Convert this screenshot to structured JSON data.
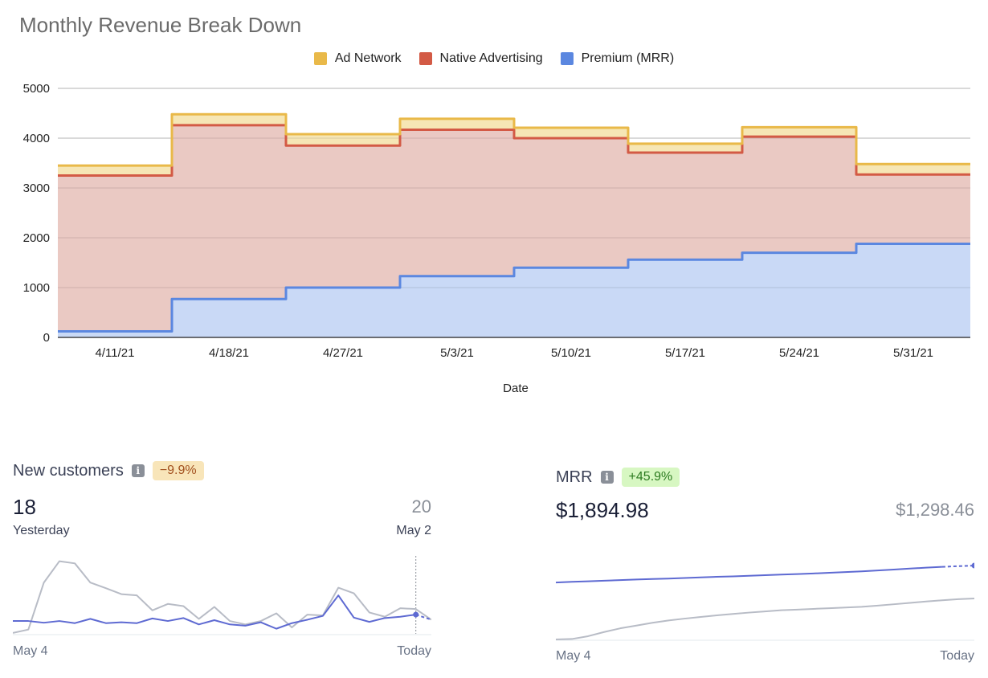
{
  "chart_data": [
    {
      "type": "area",
      "style": "stepped-stacked",
      "title": "Monthly Revenue Break Down",
      "xlabel": "Date",
      "ylabel": "",
      "ylim": [
        0,
        5000
      ],
      "yticks": [
        0,
        1000,
        2000,
        3000,
        4000,
        5000
      ],
      "grid": true,
      "legend_position": "top-center",
      "categories": [
        "4/11/21",
        "4/18/21",
        "4/27/21",
        "5/3/21",
        "5/10/21",
        "5/17/21",
        "5/24/21",
        "5/31/21"
      ],
      "series": [
        {
          "name": "Ad Network",
          "color": "#e9b949",
          "fill": "#f6e6b5",
          "values": [
            200,
            220,
            230,
            220,
            210,
            180,
            190,
            210
          ]
        },
        {
          "name": "Native Advertising",
          "color": "#d35a45",
          "fill": "#eac9c3",
          "values": [
            3130,
            3490,
            2850,
            2940,
            2600,
            2150,
            2330,
            1390
          ]
        },
        {
          "name": "Premium (MRR)",
          "color": "#5b87e0",
          "fill": "#c9d9f6",
          "values": [
            120,
            770,
            1000,
            1230,
            1400,
            1560,
            1700,
            1880
          ]
        }
      ]
    },
    {
      "type": "line",
      "title": "New customers",
      "xlabel_start": "May 4",
      "xlabel_end": "Today",
      "series": [
        {
          "name": "current",
          "color": "#5e6ad2",
          "values": [
            3,
            3,
            2.6,
            3,
            2.5,
            3.5,
            2.5,
            2.7,
            2.5,
            3.6,
            3,
            3.7,
            2.2,
            3.2,
            2.2,
            1.9,
            2.7,
            1.2,
            2.5,
            3.3,
            4.2,
            9,
            3.8,
            2.8,
            3.7,
            4,
            4.5,
            3.3
          ],
          "dashed_from": 26
        },
        {
          "name": "previous",
          "color": "#b8bcc6",
          "values": [
            0.2,
            1,
            12,
            17,
            16.5,
            12,
            10.7,
            9.3,
            9,
            5.5,
            7,
            6.5,
            3.5,
            6.3,
            3,
            2.2,
            3,
            4.8,
            1.5,
            4.5,
            4.3,
            10.8,
            9.5,
            5,
            4,
            6,
            5.8,
            3.3
          ]
        }
      ]
    },
    {
      "type": "line",
      "title": "MRR",
      "xlabel_start": "May 4",
      "xlabel_end": "Today",
      "series": [
        {
          "name": "current",
          "color": "#5e6ad2",
          "values": [
            1330,
            1345,
            1355,
            1368,
            1382,
            1395,
            1405,
            1415,
            1428,
            1440,
            1452,
            1462,
            1475,
            1487,
            1500,
            1512,
            1525,
            1540,
            1555,
            1570,
            1590,
            1610,
            1630,
            1650,
            1668,
            1682,
            1695
          ],
          "dashed_from": 24
        },
        {
          "name": "previous",
          "color": "#b8bcc6",
          "values": [
            100,
            110,
            170,
            260,
            340,
            400,
            460,
            510,
            550,
            585,
            620,
            650,
            680,
            705,
            730,
            745,
            760,
            775,
            790,
            805,
            830,
            860,
            890,
            920,
            945,
            970,
            985
          ]
        }
      ]
    }
  ],
  "widgets": {
    "new_customers": {
      "title": "New customers",
      "badge": "−9.9%",
      "value": "18",
      "value_label": "Yesterday",
      "compare_value": "20",
      "compare_label": "May 2",
      "x_start": "May 4",
      "x_end": "Today"
    },
    "mrr": {
      "title": "MRR",
      "badge": "+45.9%",
      "value": "$1,894.98",
      "compare_value": "$1,298.46",
      "x_start": "May 4",
      "x_end": "Today"
    }
  },
  "icons": {
    "info": "info-icon"
  },
  "colors": {
    "accent_line": "#5e6ad2",
    "compare_line": "#b8bcc6"
  }
}
